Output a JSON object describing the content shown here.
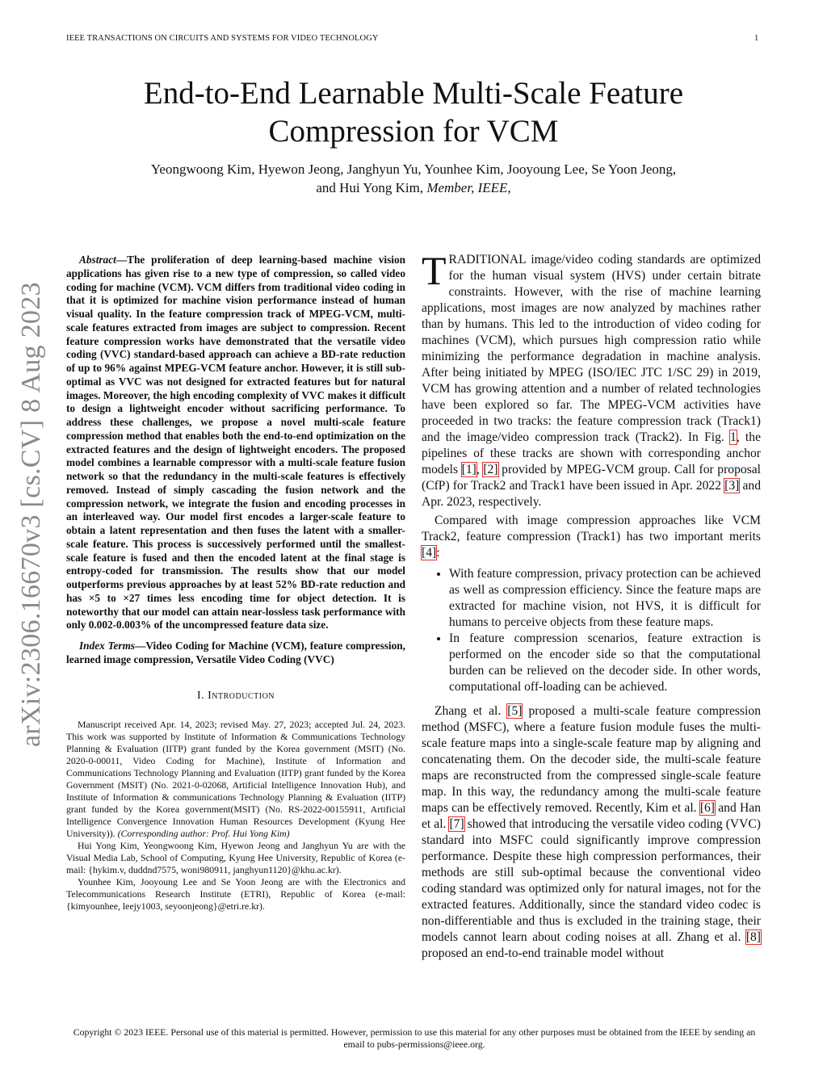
{
  "header": {
    "running_title": "IEEE TRANSACTIONS ON CIRCUITS AND SYSTEMS FOR VIDEO TECHNOLOGY",
    "page_number": "1"
  },
  "title_lines": [
    "End-to-End Learnable Multi-Scale Feature",
    "Compression for VCM"
  ],
  "authors": {
    "line1": "Yeongwoong Kim, Hyewon Jeong, Janghyun Yu, Younhee Kim, Jooyoung Lee, Se Yoon Jeong,",
    "line2": "and Hui Yong Kim,",
    "line2_italic": "Member, IEEE,"
  },
  "arxiv_stamp": "arXiv:2306.16670v3  [cs.CV]  8 Aug 2023",
  "abstract": {
    "label": "Abstract",
    "text": "—The proliferation of deep learning-based machine vision applications has given rise to a new type of compression, so called video coding for machine (VCM). VCM differs from traditional video coding in that it is optimized for machine vision performance instead of human visual quality. In the feature compression track of MPEG-VCM, multi-scale features extracted from images are subject to compression. Recent feature compression works have demonstrated that the versatile video coding (VVC) standard-based approach can achieve a BD-rate reduction of up to 96% against MPEG-VCM feature anchor. However, it is still sub-optimal as VVC was not designed for extracted features but for natural images. Moreover, the high encoding complexity of VVC makes it difficult to design a lightweight encoder without sacrificing performance. To address these challenges, we propose a novel multi-scale feature compression method that enables both the end-to-end optimization on the extracted features and the design of lightweight encoders. The proposed model combines a learnable compressor with a multi-scale feature fusion network so that the redundancy in the multi-scale features is effectively removed. Instead of simply cascading the fusion network and the compression network, we integrate the fusion and encoding processes in an interleaved way. Our model first encodes a larger-scale feature to obtain a latent representation and then fuses the latent with a smaller-scale feature. This process is successively performed until the smallest-scale feature is fused and then the encoded latent at the final stage is entropy-coded for transmission. The results show that our model outperforms previous approaches by at least 52% BD-rate reduction and has ×5 to ×27 times less encoding time for object detection. It is noteworthy that our model can attain near-lossless task performance with only 0.002-0.003% of the uncompressed feature data size."
  },
  "index_terms": {
    "label": "Index Terms",
    "text": "—Video Coding for Machine (VCM), feature compression, learned image compression, Versatile Video Coding (VVC)"
  },
  "section_heading": "I. Introduction",
  "footnotes": [
    {
      "text": "Manuscript received Apr. 14, 2023; revised May. 27, 2023; accepted Jul. 24, 2023. This work was supported by Institute of Information & Communications Technology Planning & Evaluation (IITP) grant funded by the Korea government (MSIT) (No. 2020-0-00011, Video Coding for Machine), Institute of Information and Communications Technology Planning and Evaluation (IITP) grant funded by the Korea Government (MSIT) (No. 2021-0-02068, Artificial Intelligence Innovation Hub), and Institute of Information & communications Technology Planning & Evaluation (IITP) grant funded by the Korea government(MSIT) (No. RS-2022-00155911, Artificial Intelligence Convergence Innovation Human Resources Development (Kyung Hee University)). ",
      "italic": "(Corresponding author: Prof. Hui Yong Kim)"
    },
    {
      "text": "Hui Yong Kim, Yeongwoong Kim, Hyewon Jeong and Janghyun Yu are with the Visual Media Lab, School of Computing, Kyung Hee University, Republic of Korea (e-mail: {hykim.v, duddnd7575, woni980911, janghyun1120}@khu.ac.kr).",
      "italic": ""
    },
    {
      "text": "Younhee Kim, Jooyoung Lee and Se Yoon Jeong are with the Electronics and Telecommunications Research Institute (ETRI), Republic of Korea (e-mail: {kimyounhee, leejy1003, seyoonjeong}@etri.re.kr).",
      "italic": ""
    }
  ],
  "intro": {
    "drop_cap": "T",
    "p1": [
      {
        "t": "RADITIONAL image/video coding standards are optimized for the human visual system (HVS) under certain bitrate constraints. However, with the rise of machine learning applications, most images are now analyzed by machines rather than by humans. This led to the introduction of video coding for machines (VCM), which pursues high compression ratio while minimizing the performance degradation in machine analysis. After being initiated by MPEG (ISO/IEC JTC 1/SC 29) in 2019, VCM has growing attention and a number of related technologies have been explored so far. The MPEG-VCM activities have proceeded in two tracks: the feature compression track (Track1) and the image/video compression track (Track2). In Fig. "
      },
      {
        "t": "1",
        "cite": true
      },
      {
        "t": ", the pipelines of these tracks are shown with corresponding anchor models "
      },
      {
        "t": "[1]",
        "cite": true
      },
      {
        "t": ", "
      },
      {
        "t": "[2]",
        "cite": true
      },
      {
        "t": " provided by MPEG-VCM group. Call for proposal (CfP) for Track2 and Track1 have been issued in Apr. 2022 "
      },
      {
        "t": "[3]",
        "cite": true
      },
      {
        "t": " and Apr. 2023, respectively."
      }
    ],
    "p2": [
      {
        "t": "Compared with image compression approaches like VCM Track2, feature compression (Track1) has two important merits "
      },
      {
        "t": "[4]",
        "cite": true
      },
      {
        "t": ":"
      }
    ],
    "bullets": [
      "With feature compression, privacy protection can be achieved as well as compression efficiency. Since the feature maps are extracted for machine vision, not HVS, it is difficult for humans to perceive objects from these feature maps.",
      "In feature compression scenarios, feature extraction is performed on the encoder side so that the computational burden can be relieved on the decoder side. In other words, computational off-loading can be achieved."
    ],
    "p3": [
      {
        "t": "Zhang et al. "
      },
      {
        "t": "[5]",
        "cite": true
      },
      {
        "t": " proposed a multi-scale feature compression method (MSFC), where a feature fusion module fuses the multi-scale feature maps into a single-scale feature map by aligning and concatenating them. On the decoder side, the multi-scale feature maps are reconstructed from the compressed single-scale feature map. In this way, the redundancy among the multi-scale feature maps can be effectively removed. Recently, Kim et al. "
      },
      {
        "t": "[6]",
        "cite": true
      },
      {
        "t": " and Han et al. "
      },
      {
        "t": "[7]",
        "cite": true
      },
      {
        "t": " showed that introducing the versatile video coding (VVC) standard into MSFC could significantly improve compression performance. Despite these high compression performances, their methods are still sub-optimal because the conventional video coding standard was optimized only for natural images, not for the extracted features. Additionally, since the standard video codec is non-differentiable and thus is excluded in the training stage, their models cannot learn about coding noises at all. Zhang et al. "
      },
      {
        "t": "[8]",
        "cite": true
      },
      {
        "t": " proposed an end-to-end trainable model without"
      }
    ]
  },
  "copyright": "Copyright © 2023 IEEE. Personal use of this material is permitted. However, permission to use this material for any other purposes must be obtained from the IEEE by sending an email to pubs-permissions@ieee.org.",
  "colors": {
    "citation_box": "#e03030",
    "arxiv_stamp": "#8a8a8a"
  }
}
